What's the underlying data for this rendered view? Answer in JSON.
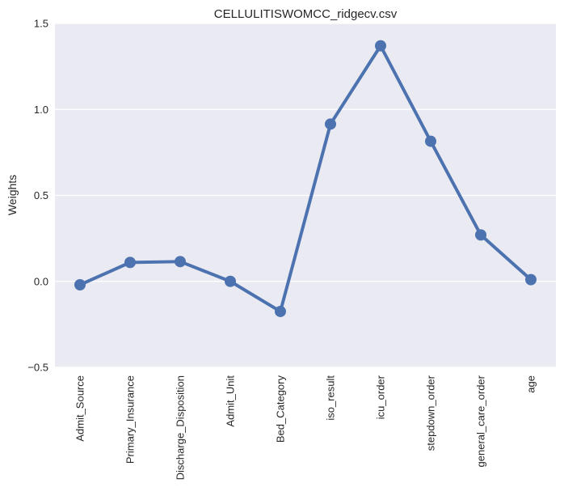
{
  "chart_data": {
    "type": "line",
    "title": "CELLULITISWOMCC_ridgecv.csv",
    "xlabel": "",
    "ylabel": "Weights",
    "categories": [
      "Admit_Source",
      "Primary_Insurance",
      "Discharge_Disposition",
      "Admit_Unit",
      "Bed_Category",
      "iso_result",
      "icu_order",
      "stepdown_order",
      "general_care_order",
      "age"
    ],
    "series": [
      {
        "values": [
          -0.02,
          0.11,
          0.115,
          0.0,
          -0.175,
          0.915,
          1.37,
          0.815,
          0.27,
          0.01
        ]
      }
    ],
    "ylim": [
      -0.5,
      1.5
    ],
    "yticks": [
      -0.5,
      0.0,
      0.5,
      1.0,
      1.5
    ],
    "ytick_labels": [
      "−0.5",
      "0.0",
      "0.5",
      "1.0",
      "1.5"
    ],
    "grid": true,
    "background": "#EAEAF2",
    "line_color": "#4C72B0"
  }
}
